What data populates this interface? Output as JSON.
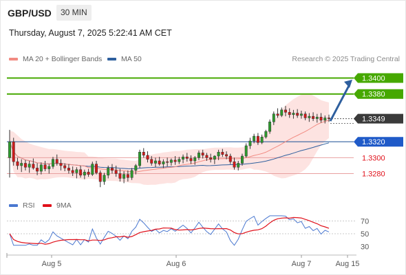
{
  "header": {
    "symbol": "GBP/USD",
    "timeframe": "30 MIN",
    "datetime": "Thursday, August 7, 2025 5:22:41 AM CET",
    "copyright": "Research © 2025 Trading Central"
  },
  "legend": {
    "ma20_label": "MA 20 + Bollinger Bands",
    "ma20_color": "#f28b82",
    "ma50_label": "MA 50",
    "ma50_color": "#2e5f9e"
  },
  "rsi_legend": {
    "rsi_label": "RSI",
    "rsi_color": "#4a78d0",
    "ma9_label": "9MA",
    "ma9_color": "#e0101a"
  },
  "chart_data": [
    {
      "type": "candlestick",
      "title": "GBP/USD",
      "x_labels": [
        "Aug 5",
        "Aug 6",
        "Aug 7",
        "Aug 15"
      ],
      "price_range": [
        1.3258,
        1.3416
      ],
      "last_price": "1.3349",
      "levels": [
        {
          "label": "1.3400",
          "value": 1.34,
          "kind": "target",
          "color": "#46a800"
        },
        {
          "label": "1.3380",
          "value": 1.338,
          "kind": "target",
          "color": "#46a800"
        },
        {
          "label": "1.3349",
          "value": 1.3349,
          "kind": "last",
          "color": "#3a3a3a"
        },
        {
          "label": "1.3320",
          "value": 1.332,
          "kind": "pivot",
          "color": "#1f5ac8"
        },
        {
          "label": "1.3300",
          "value": 1.33,
          "kind": "support",
          "color": "#e0101a"
        },
        {
          "label": "1.3280",
          "value": 1.328,
          "kind": "support",
          "color": "#e0101a"
        }
      ],
      "candles": [
        [
          1.33,
          1.3335,
          1.3275,
          1.332
        ],
        [
          1.332,
          1.3325,
          1.329,
          1.3295
        ],
        [
          1.3295,
          1.33,
          1.3285,
          1.329
        ],
        [
          1.329,
          1.3298,
          1.3282,
          1.3293
        ],
        [
          1.3293,
          1.3297,
          1.3284,
          1.3288
        ],
        [
          1.3288,
          1.3296,
          1.3281,
          1.3292
        ],
        [
          1.3292,
          1.3299,
          1.3285,
          1.3287
        ],
        [
          1.3287,
          1.3293,
          1.3278,
          1.3283
        ],
        [
          1.3283,
          1.3294,
          1.3279,
          1.3291
        ],
        [
          1.3291,
          1.3296,
          1.3283,
          1.3286
        ],
        [
          1.3286,
          1.3292,
          1.328,
          1.3289
        ],
        [
          1.3289,
          1.3301,
          1.3286,
          1.3298
        ],
        [
          1.3298,
          1.3304,
          1.329,
          1.3293
        ],
        [
          1.3293,
          1.3298,
          1.3284,
          1.329
        ],
        [
          1.329,
          1.3293,
          1.3283,
          1.3287
        ],
        [
          1.3287,
          1.3292,
          1.328,
          1.3284
        ],
        [
          1.3284,
          1.3289,
          1.3277,
          1.3281
        ],
        [
          1.3281,
          1.3288,
          1.3274,
          1.3285
        ],
        [
          1.3285,
          1.329,
          1.3275,
          1.3278
        ],
        [
          1.3278,
          1.3285,
          1.3273,
          1.3282
        ],
        [
          1.3282,
          1.3286,
          1.3276,
          1.3279
        ],
        [
          1.3279,
          1.3295,
          1.3277,
          1.3292
        ],
        [
          1.3292,
          1.3296,
          1.3279,
          1.3281
        ],
        [
          1.3281,
          1.3284,
          1.3263,
          1.327
        ],
        [
          1.327,
          1.3281,
          1.3266,
          1.3278
        ],
        [
          1.3278,
          1.329,
          1.3274,
          1.3287
        ],
        [
          1.3287,
          1.3292,
          1.328,
          1.3284
        ],
        [
          1.3284,
          1.329,
          1.3276,
          1.328
        ],
        [
          1.328,
          1.3286,
          1.327,
          1.3274
        ],
        [
          1.3274,
          1.3283,
          1.3268,
          1.3279
        ],
        [
          1.3279,
          1.3284,
          1.327,
          1.3275
        ],
        [
          1.3275,
          1.3287,
          1.3272,
          1.3284
        ],
        [
          1.3284,
          1.3292,
          1.3279,
          1.329
        ],
        [
          1.329,
          1.331,
          1.3287,
          1.3307
        ],
        [
          1.3307,
          1.3312,
          1.33,
          1.3303
        ],
        [
          1.3303,
          1.3308,
          1.3294,
          1.3298
        ],
        [
          1.3298,
          1.3302,
          1.329,
          1.3293
        ],
        [
          1.3293,
          1.33,
          1.3288,
          1.3296
        ],
        [
          1.3296,
          1.3301,
          1.329,
          1.3292
        ],
        [
          1.3292,
          1.3298,
          1.3287,
          1.3295
        ],
        [
          1.3295,
          1.33,
          1.3289,
          1.3294
        ],
        [
          1.3294,
          1.3299,
          1.329,
          1.3297
        ],
        [
          1.3297,
          1.3302,
          1.3291,
          1.3295
        ],
        [
          1.3295,
          1.3301,
          1.3292,
          1.3298
        ],
        [
          1.3298,
          1.3304,
          1.3293,
          1.3301
        ],
        [
          1.3301,
          1.3306,
          1.3295,
          1.3299
        ],
        [
          1.3299,
          1.3303,
          1.3292,
          1.3296
        ],
        [
          1.3296,
          1.3302,
          1.3291,
          1.33
        ],
        [
          1.33,
          1.3309,
          1.3297,
          1.3306
        ],
        [
          1.3306,
          1.331,
          1.3299,
          1.3303
        ],
        [
          1.3303,
          1.3306,
          1.3296,
          1.33
        ],
        [
          1.33,
          1.3305,
          1.3294,
          1.3298
        ],
        [
          1.3298,
          1.3303,
          1.3292,
          1.3302
        ],
        [
          1.3302,
          1.331,
          1.3297,
          1.3307
        ],
        [
          1.3307,
          1.3311,
          1.3301,
          1.3304
        ],
        [
          1.3304,
          1.3308,
          1.3298,
          1.3302
        ],
        [
          1.3302,
          1.3305,
          1.3292,
          1.3295
        ],
        [
          1.3295,
          1.33,
          1.3285,
          1.3288
        ],
        [
          1.3288,
          1.3296,
          1.3284,
          1.3293
        ],
        [
          1.3293,
          1.3305,
          1.329,
          1.3302
        ],
        [
          1.3302,
          1.3318,
          1.33,
          1.3315
        ],
        [
          1.3315,
          1.3325,
          1.3311,
          1.3321
        ],
        [
          1.3321,
          1.333,
          1.3318,
          1.3327
        ],
        [
          1.3327,
          1.3331,
          1.3316,
          1.3319
        ],
        [
          1.3319,
          1.3329,
          1.3317,
          1.3326
        ],
        [
          1.3326,
          1.3335,
          1.3324,
          1.3333
        ],
        [
          1.3333,
          1.3348,
          1.333,
          1.3345
        ],
        [
          1.3345,
          1.3358,
          1.3341,
          1.3355
        ],
        [
          1.3355,
          1.3362,
          1.335,
          1.3353
        ],
        [
          1.3353,
          1.3363,
          1.3351,
          1.336
        ],
        [
          1.336,
          1.3365,
          1.3352,
          1.3357
        ],
        [
          1.3357,
          1.3362,
          1.335,
          1.3354
        ],
        [
          1.3354,
          1.336,
          1.3349,
          1.3356
        ],
        [
          1.3356,
          1.3361,
          1.335,
          1.3353
        ],
        [
          1.3353,
          1.3359,
          1.3349,
          1.3355
        ],
        [
          1.3355,
          1.3358,
          1.3347,
          1.335
        ],
        [
          1.335,
          1.3356,
          1.3345,
          1.3352
        ],
        [
          1.3352,
          1.3357,
          1.3346,
          1.3349
        ],
        [
          1.3349,
          1.3355,
          1.3344,
          1.3351
        ],
        [
          1.3351,
          1.3356,
          1.3344,
          1.3347
        ],
        [
          1.3347,
          1.3353,
          1.3343,
          1.335
        ],
        [
          1.335,
          1.3354,
          1.3345,
          1.3349
        ]
      ],
      "rsi": {
        "axis_ticks": [
          70,
          50,
          30
        ],
        "range": [
          20,
          80
        ]
      }
    }
  ]
}
